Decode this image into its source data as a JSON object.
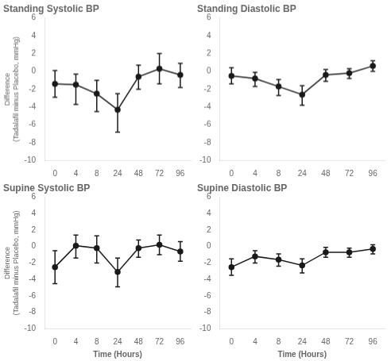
{
  "chart_data": [
    {
      "type": "line",
      "title": "Standing Systolic BP",
      "categories": [
        "0",
        "4",
        "8",
        "24",
        "48",
        "72",
        "96"
      ],
      "series": [
        {
          "color": "#1a1a1a",
          "marker": "circle",
          "values": [
            -1.4,
            -1.5,
            -2.5,
            -4.3,
            -0.6,
            0.3,
            -0.4
          ],
          "error_low": [
            1.5,
            2.2,
            2.0,
            2.5,
            1.4,
            1.7,
            1.4
          ],
          "error_high": [
            1.5,
            1.2,
            1.5,
            1.8,
            1.3,
            1.7,
            1.3
          ]
        }
      ],
      "ylabel": [
        "Difference",
        "(Tadalafil minus Placebo, mmHg)"
      ],
      "ylim": [
        -10,
        6
      ],
      "yticks": [
        -10,
        -8,
        -6,
        -4,
        -2,
        0,
        2,
        4,
        6
      ],
      "grid": false
    },
    {
      "type": "line",
      "title": "Standing Diastolic BP",
      "categories": [
        "0",
        "4",
        "8",
        "24",
        "48",
        "72",
        "96"
      ],
      "series": [
        {
          "color": "#1a1a1a",
          "marker": "circle",
          "values": [
            -0.5,
            -0.8,
            -1.7,
            -2.6,
            -0.4,
            -0.2,
            0.6
          ],
          "error_low": [
            0.9,
            0.9,
            1.0,
            1.2,
            0.7,
            0.6,
            0.6
          ],
          "error_high": [
            0.9,
            0.7,
            0.8,
            1.0,
            0.6,
            0.5,
            0.6
          ]
        }
      ],
      "ylim": [
        -10,
        6
      ],
      "yticks": [
        -10,
        -8,
        -6,
        -4,
        -2,
        0,
        2,
        4,
        6
      ],
      "grid": false
    },
    {
      "type": "line",
      "title": "Supine Systolic BP",
      "categories": [
        "0",
        "4",
        "8",
        "24",
        "48",
        "72",
        "96"
      ],
      "series": [
        {
          "color": "#1a1a1a",
          "marker": "circle",
          "values": [
            -2.5,
            0.1,
            -0.2,
            -3.1,
            -0.2,
            0.2,
            -0.6
          ],
          "error_low": [
            2.0,
            1.5,
            1.8,
            1.8,
            1.1,
            1.2,
            1.2
          ],
          "error_high": [
            2.0,
            1.3,
            1.5,
            1.7,
            1.0,
            1.2,
            1.2
          ]
        }
      ],
      "xlabel": "Time (Hours)",
      "ylabel": [
        "Difference",
        "(Tadalafil minus Placebo, mmHg)"
      ],
      "ylim": [
        -10,
        6
      ],
      "yticks": [
        -10,
        -8,
        -6,
        -4,
        -2,
        0,
        2,
        4,
        6
      ],
      "grid": false
    },
    {
      "type": "line",
      "title": "Supine Diastolic BP",
      "categories": [
        "0",
        "4",
        "8",
        "24",
        "48",
        "72",
        "96"
      ],
      "series": [
        {
          "color": "#1a1a1a",
          "marker": "circle",
          "values": [
            -2.5,
            -1.2,
            -1.6,
            -2.3,
            -0.7,
            -0.7,
            -0.3
          ],
          "error_low": [
            1.0,
            0.8,
            0.8,
            0.9,
            0.6,
            0.6,
            0.6
          ],
          "error_high": [
            1.0,
            0.7,
            0.7,
            0.8,
            0.6,
            0.5,
            0.5
          ]
        }
      ],
      "xlabel": "Time (Hours)",
      "ylim": [
        -10,
        6
      ],
      "yticks": [
        -10,
        -8,
        -6,
        -4,
        -2,
        0,
        2,
        4,
        6
      ],
      "grid": false
    }
  ]
}
